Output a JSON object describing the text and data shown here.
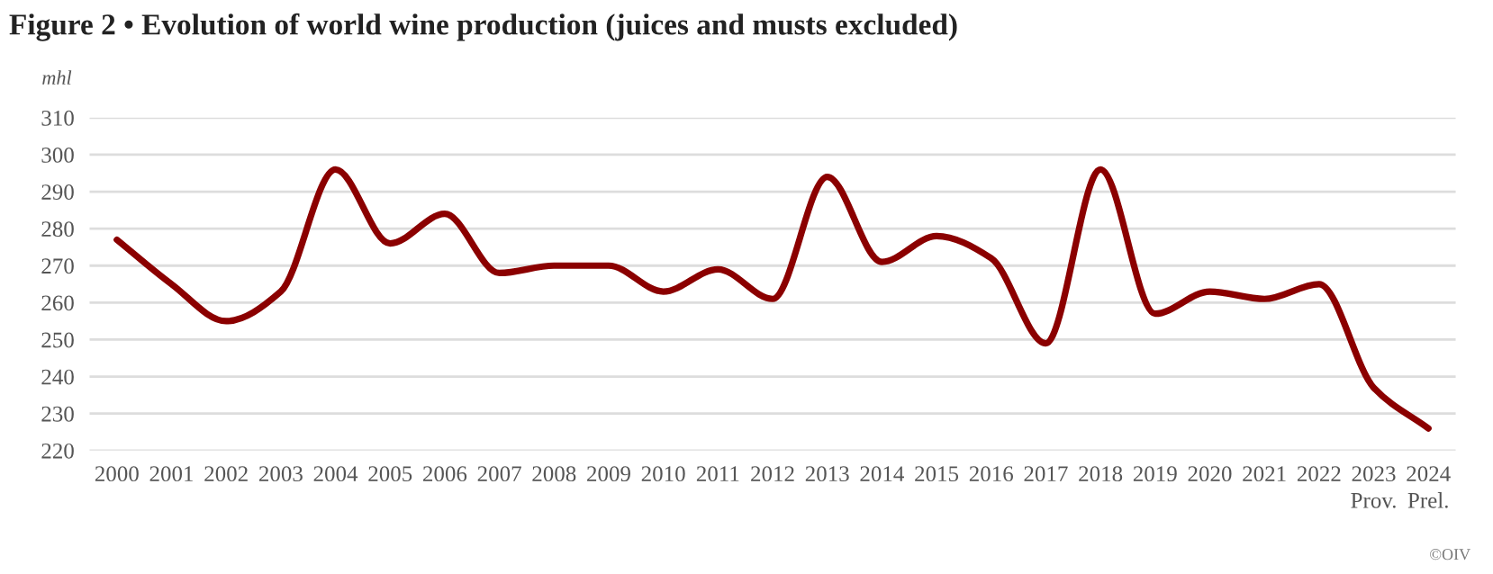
{
  "chart_data": {
    "type": "line",
    "title": "Figure 2 • Evolution of world wine production (juices and musts excluded)",
    "ylabel": "mhl",
    "categories": [
      "2000",
      "2001",
      "2002",
      "2003",
      "2004",
      "2005",
      "2006",
      "2007",
      "2008",
      "2009",
      "2010",
      "2011",
      "2012",
      "2013",
      "2014",
      "2015",
      "2016",
      "2017",
      "2018",
      "2019",
      "2020",
      "2021",
      "2022",
      "2023\nProv.",
      "2024\nPrel."
    ],
    "series": [
      {
        "color": "#8b0000",
        "values": [
          277,
          265,
          255,
          263,
          296,
          276,
          284,
          268,
          270,
          270,
          263,
          269,
          261,
          294,
          271,
          278,
          272,
          249,
          296,
          257,
          263,
          261,
          265,
          237,
          226
        ]
      }
    ],
    "ylim": [
      220,
      310
    ],
    "yticks": [
      220,
      230,
      240,
      250,
      260,
      270,
      280,
      290,
      300,
      310
    ],
    "grid": "y",
    "marker": "none",
    "line_style": "solid",
    "annotations": [
      "©OIV"
    ]
  }
}
